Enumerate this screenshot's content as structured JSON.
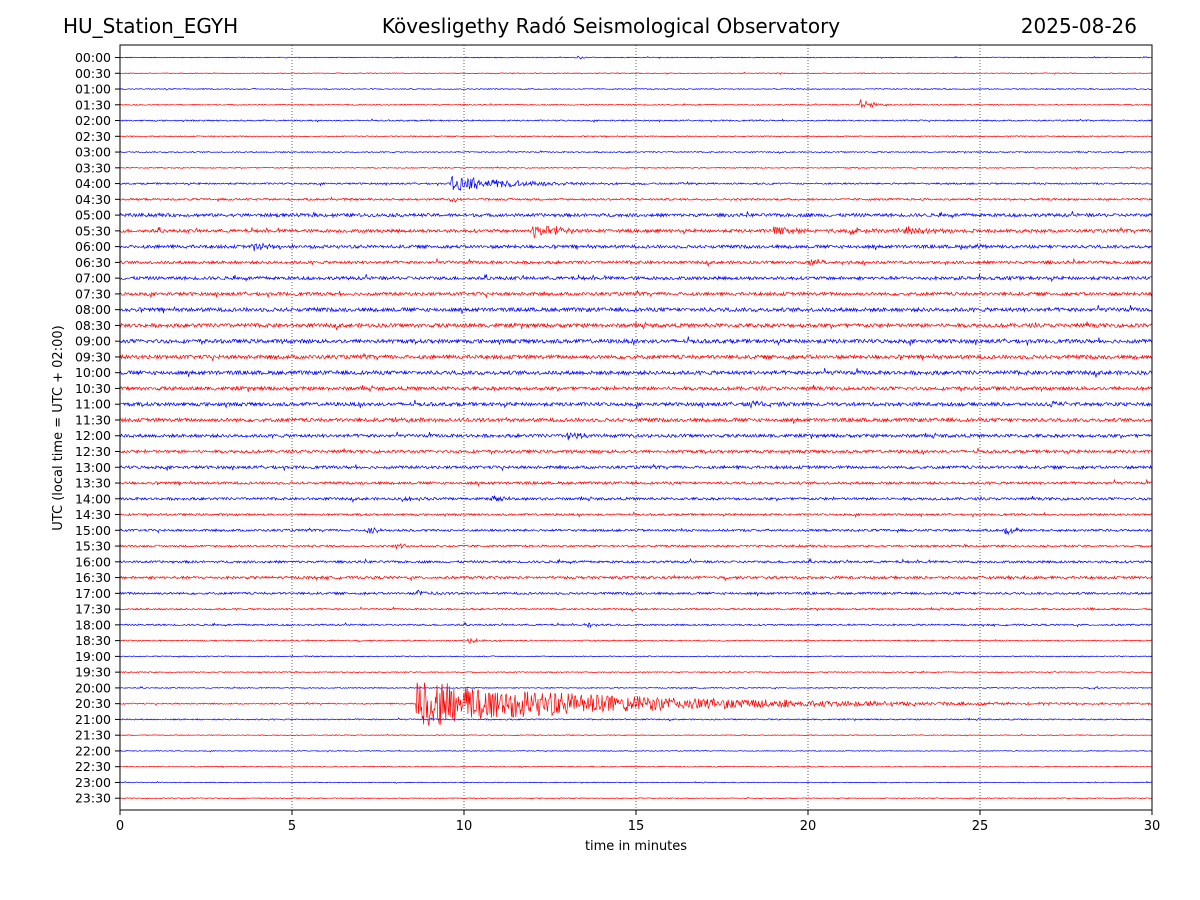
{
  "header": {
    "station": "HU_Station_EGYH",
    "title": "Kövesligethy Radó Seismological Observatory",
    "date": "2025-08-26"
  },
  "chart_data": {
    "type": "line",
    "subtype": "helicorder (seismogram drum plot)",
    "xlabel": "time in minutes",
    "ylabel": "UTC (local time = UTC + 02:00)",
    "xlim": [
      0,
      30
    ],
    "x_ticks": [
      0,
      5,
      10,
      15,
      20,
      25,
      30
    ],
    "grid": "vertical dotted lines at 5-minute ticks",
    "trace_colors": [
      "#0000ff",
      "#ff0000"
    ],
    "rows": [
      {
        "label": "00:00",
        "noise": 0.5,
        "events": [
          {
            "t": 13.3,
            "amp": 1.5,
            "dur": 0.3
          }
        ]
      },
      {
        "label": "00:30",
        "noise": 0.5,
        "events": []
      },
      {
        "label": "01:00",
        "noise": 0.6,
        "events": []
      },
      {
        "label": "01:30",
        "noise": 0.6,
        "events": [
          {
            "t": 21.5,
            "amp": 6,
            "dur": 0.5
          }
        ]
      },
      {
        "label": "02:00",
        "noise": 0.8,
        "events": []
      },
      {
        "label": "02:30",
        "noise": 0.6,
        "events": []
      },
      {
        "label": "03:00",
        "noise": 0.7,
        "events": []
      },
      {
        "label": "03:30",
        "noise": 0.6,
        "events": []
      },
      {
        "label": "04:00",
        "noise": 1.0,
        "events": [
          {
            "t": 9.6,
            "amp": 7,
            "dur": 2.5
          }
        ]
      },
      {
        "label": "04:30",
        "noise": 1.2,
        "events": [
          {
            "t": 9.6,
            "amp": 3,
            "dur": 0.3
          }
        ]
      },
      {
        "label": "05:00",
        "noise": 2.0,
        "events": []
      },
      {
        "label": "05:30",
        "noise": 2.0,
        "events": [
          {
            "t": 12.0,
            "amp": 8,
            "dur": 1.0
          },
          {
            "t": 19.0,
            "amp": 4,
            "dur": 1.0
          },
          {
            "t": 21.2,
            "amp": 5,
            "dur": 0.6
          },
          {
            "t": 22.8,
            "amp": 4,
            "dur": 1.0
          }
        ]
      },
      {
        "label": "06:00",
        "noise": 2.0,
        "events": [
          {
            "t": 3.8,
            "amp": 4,
            "dur": 1.0
          },
          {
            "t": 24.4,
            "amp": 3,
            "dur": 0.6
          }
        ]
      },
      {
        "label": "06:30",
        "noise": 1.8,
        "events": [
          {
            "t": 20.0,
            "amp": 3,
            "dur": 1.0
          }
        ]
      },
      {
        "label": "07:00",
        "noise": 2.0,
        "events": [
          {
            "t": 24.4,
            "amp": 3,
            "dur": 0.4
          }
        ]
      },
      {
        "label": "07:30",
        "noise": 2.0,
        "events": []
      },
      {
        "label": "08:00",
        "noise": 2.4,
        "events": []
      },
      {
        "label": "08:30",
        "noise": 2.4,
        "events": []
      },
      {
        "label": "09:00",
        "noise": 2.4,
        "events": []
      },
      {
        "label": "09:30",
        "noise": 2.4,
        "events": []
      },
      {
        "label": "10:00",
        "noise": 2.4,
        "events": []
      },
      {
        "label": "10:30",
        "noise": 2.2,
        "events": []
      },
      {
        "label": "11:00",
        "noise": 2.2,
        "events": [
          {
            "t": 18.2,
            "amp": 3,
            "dur": 0.8
          },
          {
            "t": 27.0,
            "amp": 3,
            "dur": 0.6
          }
        ]
      },
      {
        "label": "11:30",
        "noise": 2.2,
        "events": [
          {
            "t": 8.0,
            "amp": 3,
            "dur": 0.8
          }
        ]
      },
      {
        "label": "12:00",
        "noise": 2.0,
        "events": [
          {
            "t": 13.0,
            "amp": 4,
            "dur": 0.6
          }
        ]
      },
      {
        "label": "12:30",
        "noise": 1.8,
        "events": []
      },
      {
        "label": "13:00",
        "noise": 1.8,
        "events": []
      },
      {
        "label": "13:30",
        "noise": 1.6,
        "events": []
      },
      {
        "label": "14:00",
        "noise": 1.6,
        "events": [
          {
            "t": 8.2,
            "amp": 3,
            "dur": 0.5
          },
          {
            "t": 10.8,
            "amp": 3,
            "dur": 0.5
          }
        ]
      },
      {
        "label": "14:30",
        "noise": 1.2,
        "events": []
      },
      {
        "label": "15:00",
        "noise": 1.4,
        "events": [
          {
            "t": 7.2,
            "amp": 4,
            "dur": 0.4
          },
          {
            "t": 25.7,
            "amp": 5,
            "dur": 0.3
          }
        ]
      },
      {
        "label": "15:30",
        "noise": 1.2,
        "events": [
          {
            "t": 8.0,
            "amp": 3,
            "dur": 0.4
          }
        ]
      },
      {
        "label": "16:00",
        "noise": 1.4,
        "events": []
      },
      {
        "label": "16:30",
        "noise": 1.6,
        "events": [
          {
            "t": 25.8,
            "amp": 3,
            "dur": 0.3
          }
        ]
      },
      {
        "label": "17:00",
        "noise": 1.4,
        "events": [
          {
            "t": 8.6,
            "amp": 5,
            "dur": 0.5
          }
        ]
      },
      {
        "label": "17:30",
        "noise": 1.0,
        "events": [
          {
            "t": 28.1,
            "amp": 2,
            "dur": 0.2
          }
        ]
      },
      {
        "label": "18:00",
        "noise": 1.0,
        "events": [
          {
            "t": 13.6,
            "amp": 3,
            "dur": 0.3
          }
        ]
      },
      {
        "label": "18:30",
        "noise": 0.8,
        "events": [
          {
            "t": 10.1,
            "amp": 4,
            "dur": 0.4
          }
        ]
      },
      {
        "label": "19:00",
        "noise": 0.6,
        "events": []
      },
      {
        "label": "19:30",
        "noise": 0.6,
        "events": []
      },
      {
        "label": "20:00",
        "noise": 0.6,
        "events": [
          {
            "t": 28.3,
            "amp": 2,
            "dur": 0.2
          }
        ]
      },
      {
        "label": "20:30",
        "noise": 0.8,
        "events": [
          {
            "t": 8.6,
            "amp": 24,
            "dur": 7.0
          }
        ]
      },
      {
        "label": "21:00",
        "noise": 0.8,
        "events": []
      },
      {
        "label": "21:30",
        "noise": 0.5,
        "events": []
      },
      {
        "label": "22:00",
        "noise": 0.5,
        "events": []
      },
      {
        "label": "22:30",
        "noise": 0.5,
        "events": []
      },
      {
        "label": "23:00",
        "noise": 0.5,
        "events": []
      },
      {
        "label": "23:30",
        "noise": 0.5,
        "events": []
      }
    ]
  }
}
